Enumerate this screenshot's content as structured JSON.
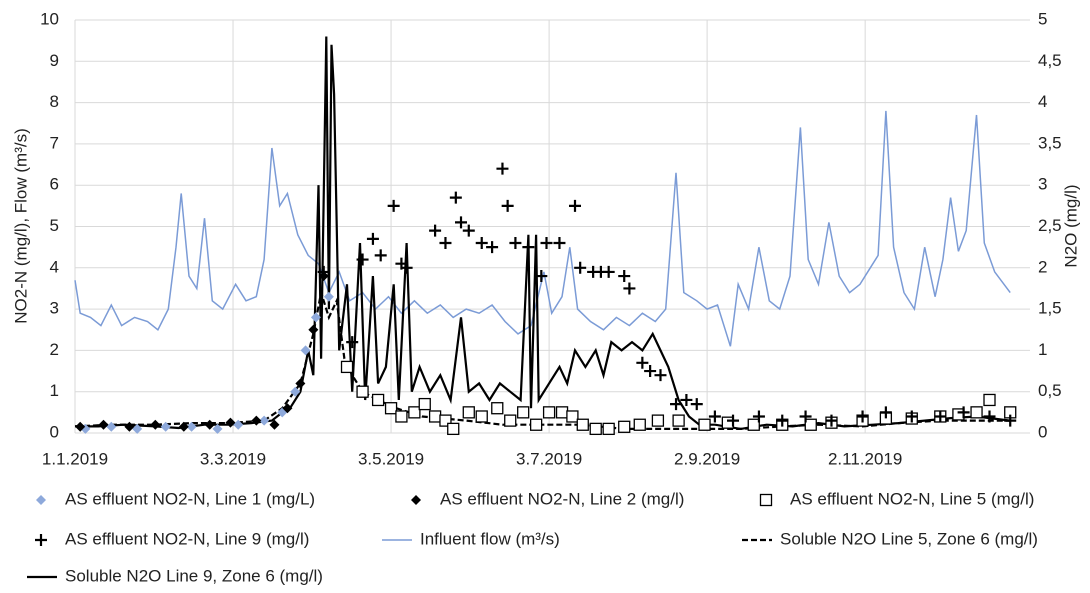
{
  "chart_data": {
    "type": "line",
    "xlim": [
      "2019-01-01",
      "2019-12-31"
    ],
    "xticks": [
      {
        "value": "2019-01-01",
        "label": "1.1.2019"
      },
      {
        "value": "2019-03-03",
        "label": "3.3.2019"
      },
      {
        "value": "2019-05-03",
        "label": "3.5.2019"
      },
      {
        "value": "2019-07-03",
        "label": "3.7.2019"
      },
      {
        "value": "2019-09-02",
        "label": "2.9.2019"
      },
      {
        "value": "2019-11-02",
        "label": "2.11.2019"
      }
    ],
    "y_label": "NO2-N (mg/l), Flow (m³/s)",
    "y2_label": "N2O (mg/l)",
    "ylim": [
      0,
      10
    ],
    "yticks": [
      0,
      1,
      2,
      3,
      4,
      5,
      6,
      7,
      8,
      9,
      10
    ],
    "y2lim": [
      0,
      5
    ],
    "y2ticks": [
      0,
      {
        "value": 0.5,
        "label": "0,5"
      },
      1,
      {
        "value": 1.5,
        "label": "1,5"
      },
      2,
      {
        "value": 2.5,
        "label": "2,5"
      },
      3,
      {
        "value": 3.5,
        "label": "3,5"
      },
      4,
      {
        "value": 4.5,
        "label": "4,5"
      },
      5
    ],
    "grid": true,
    "legend": "bottom",
    "series": [
      {
        "name": "AS effluent NO2-N, Line 1 (mg/L)",
        "color": "#8ea9db",
        "mode": "markers",
        "marker": "diamond",
        "x": [
          "2019-01-05",
          "2019-01-15",
          "2019-01-25",
          "2019-02-05",
          "2019-02-15",
          "2019-02-25",
          "2019-03-05",
          "2019-03-15",
          "2019-03-22",
          "2019-03-27",
          "2019-03-31",
          "2019-04-04",
          "2019-04-09"
        ],
        "values": [
          0.1,
          0.15,
          0.1,
          0.15,
          0.15,
          0.1,
          0.2,
          0.3,
          0.5,
          1.0,
          2.0,
          2.8,
          3.3
        ]
      },
      {
        "name": "AS effluent NO2-N, Line 2 (mg/l)",
        "color": "#000000",
        "mode": "markers",
        "marker": "diamond",
        "x": [
          "2019-01-03",
          "2019-01-12",
          "2019-01-22",
          "2019-02-01",
          "2019-02-12",
          "2019-02-22",
          "2019-03-02",
          "2019-03-12",
          "2019-03-19",
          "2019-03-24",
          "2019-03-29",
          "2019-04-03",
          "2019-04-07"
        ],
        "values": [
          0.15,
          0.2,
          0.15,
          0.2,
          0.15,
          0.2,
          0.25,
          0.3,
          0.2,
          0.6,
          1.2,
          2.5,
          3.8
        ]
      },
      {
        "name": "AS effluent NO2-N, Line 5 (mg/l)",
        "color": "#000000",
        "mode": "markers",
        "marker": "square",
        "x": [
          "2019-04-16",
          "2019-04-22",
          "2019-04-28",
          "2019-05-03",
          "2019-05-07",
          "2019-05-12",
          "2019-05-16",
          "2019-05-20",
          "2019-05-24",
          "2019-05-27",
          "2019-06-02",
          "2019-06-07",
          "2019-06-13",
          "2019-06-18",
          "2019-06-23",
          "2019-06-28",
          "2019-07-03",
          "2019-07-08",
          "2019-07-12",
          "2019-07-16",
          "2019-07-21",
          "2019-07-26",
          "2019-08-01",
          "2019-08-07",
          "2019-08-14",
          "2019-08-22",
          "2019-09-01",
          "2019-09-10",
          "2019-09-20",
          "2019-10-01",
          "2019-10-12",
          "2019-10-20",
          "2019-11-01",
          "2019-11-10",
          "2019-11-20",
          "2019-12-01",
          "2019-12-08",
          "2019-12-15",
          "2019-12-20",
          "2019-12-28"
        ],
        "values": [
          1.6,
          1.0,
          0.8,
          0.6,
          0.4,
          0.5,
          0.7,
          0.4,
          0.3,
          0.1,
          0.5,
          0.4,
          0.6,
          0.3,
          0.5,
          0.2,
          0.5,
          0.5,
          0.4,
          0.2,
          0.1,
          0.1,
          0.15,
          0.2,
          0.3,
          0.3,
          0.2,
          0.25,
          0.2,
          0.2,
          0.2,
          0.25,
          0.3,
          0.35,
          0.35,
          0.4,
          0.45,
          0.5,
          0.8,
          0.5
        ]
      },
      {
        "name": "AS effluent NO2-N, Line 9 (mg/l)",
        "color": "#000000",
        "mode": "markers",
        "marker": "plus",
        "x": [
          "2019-04-07",
          "2019-04-18",
          "2019-04-22",
          "2019-04-26",
          "2019-04-29",
          "2019-05-04",
          "2019-05-07",
          "2019-05-09",
          "2019-05-20",
          "2019-05-24",
          "2019-05-28",
          "2019-05-30",
          "2019-06-02",
          "2019-06-07",
          "2019-06-11",
          "2019-06-15",
          "2019-06-17",
          "2019-06-20",
          "2019-06-25",
          "2019-06-30",
          "2019-07-02",
          "2019-07-07",
          "2019-07-13",
          "2019-07-15",
          "2019-07-20",
          "2019-07-23",
          "2019-07-26",
          "2019-08-01",
          "2019-08-03",
          "2019-08-08",
          "2019-08-11",
          "2019-08-15",
          "2019-08-21",
          "2019-08-25",
          "2019-08-29",
          "2019-09-05",
          "2019-09-12",
          "2019-09-22",
          "2019-10-01",
          "2019-10-10",
          "2019-10-20",
          "2019-11-01",
          "2019-11-10",
          "2019-11-20",
          "2019-12-01",
          "2019-12-10",
          "2019-12-20",
          "2019-12-28"
        ],
        "values": [
          3.9,
          2.2,
          4.2,
          4.7,
          4.3,
          5.5,
          4.1,
          4.0,
          4.9,
          4.6,
          5.7,
          5.1,
          4.9,
          4.6,
          4.5,
          6.4,
          5.5,
          4.6,
          4.5,
          3.8,
          4.6,
          4.6,
          5.5,
          4.0,
          3.9,
          3.9,
          3.9,
          3.8,
          3.5,
          1.7,
          1.5,
          1.4,
          0.7,
          0.8,
          0.7,
          0.4,
          0.3,
          0.4,
          0.3,
          0.4,
          0.3,
          0.4,
          0.5,
          0.4,
          0.4,
          0.5,
          0.4,
          0.3
        ]
      },
      {
        "name": "Influent flow (m³/s)",
        "color": "#7b9bd6",
        "mode": "line",
        "x": [
          "2019-01-01",
          "2019-01-03",
          "2019-01-07",
          "2019-01-11",
          "2019-01-15",
          "2019-01-19",
          "2019-01-24",
          "2019-01-29",
          "2019-02-02",
          "2019-02-06",
          "2019-02-09",
          "2019-02-11",
          "2019-02-14",
          "2019-02-17",
          "2019-02-20",
          "2019-02-23",
          "2019-02-27",
          "2019-03-04",
          "2019-03-08",
          "2019-03-12",
          "2019-03-15",
          "2019-03-18",
          "2019-03-21",
          "2019-03-24",
          "2019-03-28",
          "2019-04-01",
          "2019-04-05",
          "2019-04-09",
          "2019-04-13",
          "2019-04-17",
          "2019-04-22",
          "2019-04-27",
          "2019-05-02",
          "2019-05-07",
          "2019-05-12",
          "2019-05-17",
          "2019-05-22",
          "2019-05-27",
          "2019-06-01",
          "2019-06-06",
          "2019-06-11",
          "2019-06-16",
          "2019-06-21",
          "2019-06-26",
          "2019-07-01",
          "2019-07-04",
          "2019-07-08",
          "2019-07-11",
          "2019-07-14",
          "2019-07-19",
          "2019-07-24",
          "2019-07-29",
          "2019-08-03",
          "2019-08-08",
          "2019-08-13",
          "2019-08-17",
          "2019-08-21",
          "2019-08-24",
          "2019-08-29",
          "2019-09-02",
          "2019-09-06",
          "2019-09-11",
          "2019-09-14",
          "2019-09-18",
          "2019-09-22",
          "2019-09-26",
          "2019-09-30",
          "2019-10-04",
          "2019-10-08",
          "2019-10-11",
          "2019-10-15",
          "2019-10-19",
          "2019-10-23",
          "2019-10-27",
          "2019-10-31",
          "2019-11-04",
          "2019-11-07",
          "2019-11-10",
          "2019-11-13",
          "2019-11-17",
          "2019-11-21",
          "2019-11-25",
          "2019-11-29",
          "2019-12-02",
          "2019-12-05",
          "2019-12-08",
          "2019-12-11",
          "2019-12-15",
          "2019-12-18",
          "2019-12-22",
          "2019-12-28"
        ],
        "values": [
          3.7,
          2.9,
          2.8,
          2.6,
          3.1,
          2.6,
          2.8,
          2.7,
          2.5,
          3.0,
          4.5,
          5.8,
          3.8,
          3.5,
          5.2,
          3.2,
          3.0,
          3.6,
          3.2,
          3.3,
          4.2,
          6.9,
          5.5,
          5.8,
          4.8,
          4.3,
          4.1,
          3.4,
          3.9,
          3.2,
          3.4,
          3.0,
          3.3,
          2.9,
          3.2,
          2.9,
          3.1,
          2.8,
          3.0,
          2.9,
          3.1,
          2.7,
          2.4,
          2.6,
          3.9,
          2.9,
          3.3,
          4.5,
          3.0,
          2.7,
          2.5,
          2.8,
          2.6,
          2.9,
          2.7,
          3.0,
          6.3,
          3.4,
          3.2,
          3.0,
          3.1,
          2.1,
          3.6,
          3.0,
          4.5,
          3.2,
          3.0,
          3.8,
          7.4,
          4.2,
          3.6,
          5.1,
          3.8,
          3.4,
          3.6,
          4.0,
          4.3,
          7.8,
          4.5,
          3.4,
          3.0,
          4.5,
          3.3,
          4.2,
          5.7,
          4.4,
          4.9,
          7.7,
          4.6,
          3.9,
          3.4
        ]
      },
      {
        "name": "Soluble N2O Line 5, Zone 6 (mg/l)",
        "color": "#000000",
        "mode": "line",
        "dash": true,
        "axis": "y2",
        "x": [
          "2019-01-01",
          "2019-01-15",
          "2019-02-01",
          "2019-02-15",
          "2019-03-01",
          "2019-03-15",
          "2019-03-22",
          "2019-03-29",
          "2019-04-03",
          "2019-04-06",
          "2019-04-09",
          "2019-04-12",
          "2019-04-15",
          "2019-04-18",
          "2019-04-22",
          "2019-04-28",
          "2019-05-05",
          "2019-05-15",
          "2019-06-01",
          "2019-06-15",
          "2019-07-01",
          "2019-07-15",
          "2019-08-01",
          "2019-08-15",
          "2019-09-01",
          "2019-09-15",
          "2019-10-01",
          "2019-10-15",
          "2019-11-01",
          "2019-11-15",
          "2019-12-01",
          "2019-12-15",
          "2019-12-28"
        ],
        "values": [
          0.08,
          0.1,
          0.1,
          0.12,
          0.12,
          0.15,
          0.3,
          0.6,
          1.2,
          1.7,
          1.4,
          1.6,
          0.9,
          0.7,
          0.5,
          0.4,
          0.3,
          0.2,
          0.15,
          0.1,
          0.1,
          0.1,
          0.05,
          0.05,
          0.05,
          0.05,
          0.08,
          0.1,
          0.08,
          0.12,
          0.15,
          0.15,
          0.15
        ]
      },
      {
        "name": "Soluble N2O Line 9, Zone 6 (mg/l)",
        "color": "#000000",
        "mode": "line",
        "axis": "y2",
        "x": [
          "2019-01-01",
          "2019-01-10",
          "2019-01-20",
          "2019-02-01",
          "2019-02-10",
          "2019-02-20",
          "2019-03-01",
          "2019-03-10",
          "2019-03-18",
          "2019-03-22",
          "2019-03-25",
          "2019-03-29",
          "2019-04-01",
          "2019-04-03",
          "2019-04-05",
          "2019-04-06",
          "2019-04-08",
          "2019-04-09",
          "2019-04-10",
          "2019-04-11",
          "2019-04-13",
          "2019-04-16",
          "2019-04-18",
          "2019-04-21",
          "2019-04-23",
          "2019-04-26",
          "2019-04-28",
          "2019-05-01",
          "2019-05-04",
          "2019-05-06",
          "2019-05-09",
          "2019-05-11",
          "2019-05-14",
          "2019-05-18",
          "2019-05-22",
          "2019-05-26",
          "2019-05-30",
          "2019-06-02",
          "2019-06-06",
          "2019-06-10",
          "2019-06-14",
          "2019-06-18",
          "2019-06-22",
          "2019-06-25",
          "2019-06-26",
          "2019-06-28",
          "2019-06-29",
          "2019-07-03",
          "2019-07-07",
          "2019-07-10",
          "2019-07-13",
          "2019-07-17",
          "2019-07-21",
          "2019-07-24",
          "2019-07-27",
          "2019-07-31",
          "2019-08-04",
          "2019-08-08",
          "2019-08-12",
          "2019-08-15",
          "2019-08-18",
          "2019-08-22",
          "2019-08-26",
          "2019-08-30",
          "2019-09-05",
          "2019-09-15",
          "2019-09-25",
          "2019-10-05",
          "2019-10-15",
          "2019-10-25",
          "2019-11-05",
          "2019-11-15",
          "2019-11-25",
          "2019-12-05",
          "2019-12-15",
          "2019-12-28"
        ],
        "values": [
          0.08,
          0.08,
          0.1,
          0.08,
          0.06,
          0.1,
          0.1,
          0.12,
          0.15,
          0.25,
          0.3,
          0.5,
          1.0,
          0.7,
          3.0,
          0.9,
          4.8,
          1.5,
          4.7,
          4.1,
          1.0,
          1.8,
          0.5,
          2.3,
          0.4,
          1.9,
          0.6,
          0.8,
          1.8,
          0.4,
          2.3,
          0.5,
          0.8,
          0.5,
          0.7,
          0.4,
          1.4,
          0.5,
          0.6,
          0.4,
          0.6,
          0.5,
          0.4,
          2.4,
          0.3,
          2.4,
          0.4,
          0.6,
          0.8,
          0.6,
          1.0,
          0.8,
          1.0,
          0.7,
          1.1,
          1.0,
          1.1,
          1.0,
          1.2,
          1.0,
          0.8,
          0.4,
          0.2,
          0.1,
          0.1,
          0.05,
          0.1,
          0.08,
          0.12,
          0.08,
          0.1,
          0.12,
          0.15,
          0.18,
          0.2,
          0.15
        ]
      }
    ]
  }
}
